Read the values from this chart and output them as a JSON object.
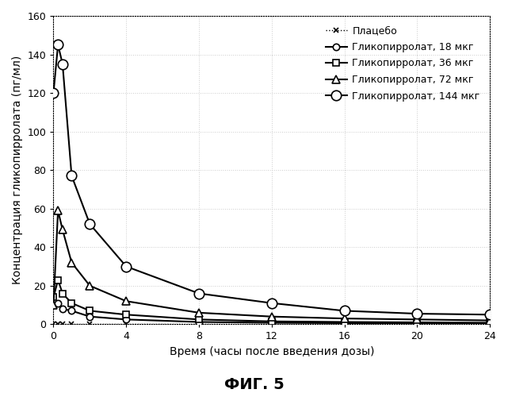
{
  "title": "ФИГ. 5",
  "xlabel": "Время (часы после введения дозы)",
  "ylabel": "Концентрация гликопирролата (пг/мл)",
  "xlim": [
    0,
    24
  ],
  "ylim": [
    0,
    160
  ],
  "xticks": [
    0,
    4,
    8,
    12,
    16,
    20,
    24
  ],
  "yticks": [
    0,
    20,
    40,
    60,
    80,
    100,
    120,
    140,
    160
  ],
  "series": [
    {
      "label": "Плацебо",
      "x": [
        0,
        0.25,
        0.5,
        1,
        2,
        4,
        8,
        12,
        16,
        20,
        24
      ],
      "y": [
        0.3,
        0.3,
        0.3,
        0.3,
        0.3,
        0.3,
        0.3,
        0.3,
        0.3,
        0.3,
        0.3
      ],
      "color": "black",
      "linestyle": "dotted",
      "marker": "x",
      "markersize": 5,
      "linewidth": 1.0,
      "markerfacecolor": "black"
    },
    {
      "label": "Гликопирролат, 18 мкг",
      "x": [
        0,
        0.25,
        0.5,
        1,
        2,
        4,
        8,
        12,
        16,
        20,
        24
      ],
      "y": [
        10,
        11,
        8,
        7,
        4,
        2.5,
        1.2,
        0.8,
        0.6,
        0.5,
        0.3
      ],
      "color": "black",
      "linestyle": "solid",
      "marker": "o",
      "markersize": 6,
      "linewidth": 1.5,
      "markerfacecolor": "white"
    },
    {
      "label": "Гликопирролат, 36 мкг",
      "x": [
        0,
        0.25,
        0.5,
        1,
        2,
        4,
        8,
        12,
        16,
        20,
        24
      ],
      "y": [
        14,
        23,
        16,
        11,
        7,
        5,
        2.5,
        1.5,
        1.2,
        1.0,
        0.8
      ],
      "color": "black",
      "linestyle": "solid",
      "marker": "s",
      "markersize": 6,
      "linewidth": 1.5,
      "markerfacecolor": "white"
    },
    {
      "label": "Гликопирролат, 72 мкг",
      "x": [
        0,
        0.25,
        0.5,
        1,
        2,
        4,
        8,
        12,
        16,
        20,
        24
      ],
      "y": [
        10,
        59,
        49,
        32,
        20,
        12,
        6,
        4,
        3.0,
        2.5,
        2.0
      ],
      "color": "black",
      "linestyle": "solid",
      "marker": "^",
      "markersize": 7,
      "linewidth": 1.5,
      "markerfacecolor": "white"
    },
    {
      "label": "Гликопирролат, 144 мкг",
      "x": [
        0,
        0.25,
        0.5,
        1,
        2,
        4,
        8,
        12,
        16,
        20,
        24
      ],
      "y": [
        120,
        145,
        135,
        77,
        52,
        30,
        16,
        11,
        7,
        5.5,
        5.0
      ],
      "color": "black",
      "linestyle": "solid",
      "marker": "o",
      "markersize": 9,
      "linewidth": 1.5,
      "markerfacecolor": "white"
    }
  ],
  "background_color": "#ffffff",
  "grid_color": "#cccccc",
  "legend_fontsize": 9,
  "axis_fontsize": 10,
  "title_fontsize": 14,
  "outer_border_linestyle": "dotted",
  "outer_border_color": "#888888"
}
